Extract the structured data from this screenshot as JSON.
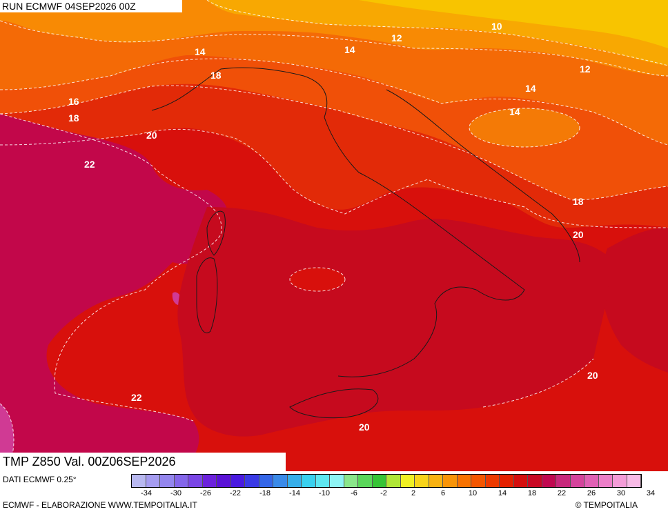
{
  "header": {
    "run_label": "RUN ECMWF 04SEP2026 00Z"
  },
  "map": {
    "title": "TMP Z850 Val. 00Z06SEP2026",
    "contour_labels": [
      "10",
      "12",
      "12",
      "14",
      "14",
      "14",
      "14",
      "16",
      "18",
      "18",
      "18",
      "20",
      "20",
      "20",
      "20",
      "22",
      "22"
    ]
  },
  "footer": {
    "data_source": "DATI ECMWF 0.25°",
    "credit": "ECMWF - ELABORAZIONE WWW.TEMPOITALIA.IT",
    "copyright": "TEMPOITALIA"
  },
  "legend": {
    "ticks": [
      "-34",
      "-30",
      "-26",
      "-22",
      "-18",
      "-14",
      "-10",
      "-6",
      "-2",
      "2",
      "6",
      "10",
      "14",
      "18",
      "22",
      "26",
      "30",
      "34"
    ],
    "colors": [
      "#b8b8f0",
      "#a59cf0",
      "#9486ee",
      "#8466ea",
      "#7a46e6",
      "#6c22dc",
      "#5a12d6",
      "#4a1ae0",
      "#3a3ae6",
      "#3466e8",
      "#3a8ae8",
      "#36aeea",
      "#3ad0ee",
      "#5ee6f0",
      "#8ef4f4",
      "#8ae68a",
      "#5ad65a",
      "#36c436",
      "#b0e636",
      "#f0f024",
      "#f8d41a",
      "#f8b212",
      "#f89408",
      "#f87200",
      "#f45600",
      "#ec3a00",
      "#e42000",
      "#d40e0e",
      "#c80824",
      "#c00850",
      "#c8287c",
      "#d4449c",
      "#e060b4",
      "#ec7ec8",
      "#f49cd8",
      "#f8bae6"
    ]
  }
}
